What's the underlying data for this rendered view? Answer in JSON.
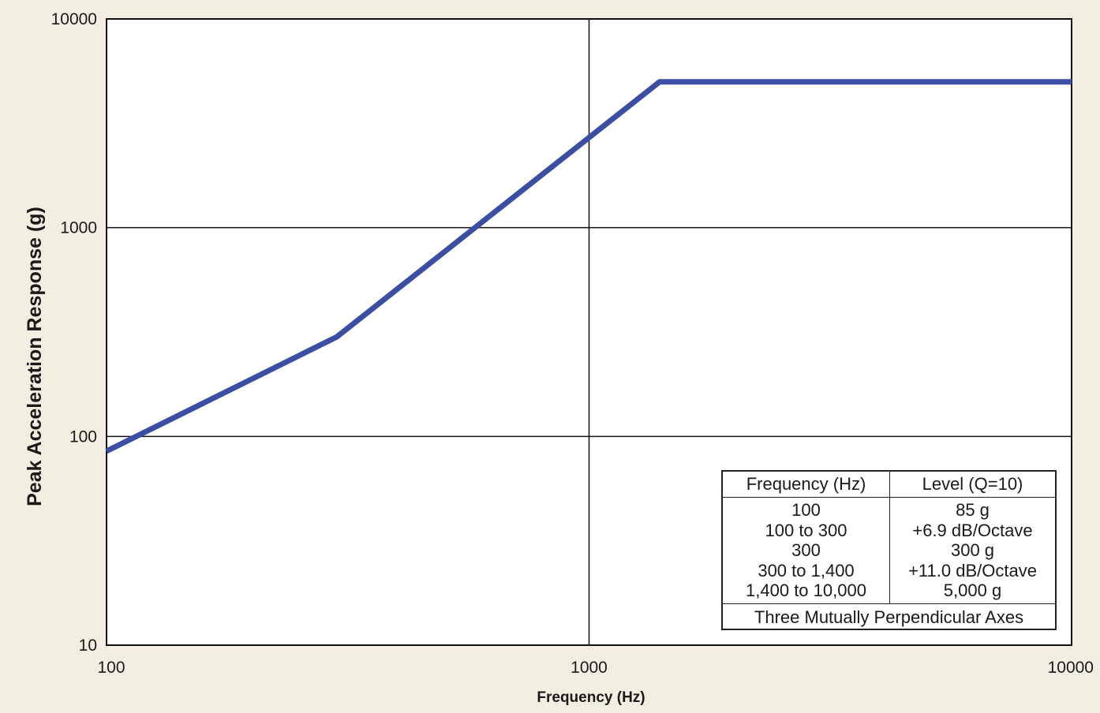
{
  "chart_data": {
    "type": "line",
    "title": "",
    "xlabel": "Frequency (Hz)",
    "ylabel": "Peak Acceleration Response (g)",
    "xscale": "log",
    "yscale": "log",
    "xlim": [
      100,
      10000
    ],
    "ylim": [
      10,
      10000
    ],
    "x_ticks": [
      "100",
      "1000",
      "10000"
    ],
    "y_ticks": [
      "10",
      "100",
      "1000",
      "10000"
    ],
    "grid": true,
    "series": [
      {
        "x": [
          100,
          300,
          1400,
          10000
        ],
        "y": [
          85,
          300,
          5000,
          5000
        ],
        "color": "#3c4ea3"
      }
    ]
  },
  "spec_table": {
    "headers": [
      "Frequency (Hz)",
      "Level (Q=10)"
    ],
    "rows": [
      [
        "100",
        "85 g"
      ],
      [
        "100 to 300",
        "+6.9 dB/Octave"
      ],
      [
        "300",
        "300 g"
      ],
      [
        "300 to 1,400",
        "+11.0 dB/Octave"
      ],
      [
        "1,400 to 10,000",
        "5,000 g"
      ]
    ],
    "footer": "Three Mutually Perpendicular Axes"
  },
  "colors": {
    "background": "#f2eee2",
    "plot_area": "#ffffff",
    "line": "#3c4ea3",
    "grid": "#111111"
  }
}
